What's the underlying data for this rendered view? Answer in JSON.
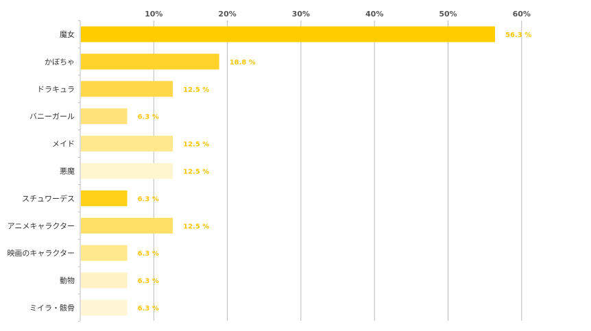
{
  "chart_data": {
    "type": "bar",
    "orientation": "horizontal",
    "title": "",
    "xlabel": "",
    "ylabel": "",
    "xlim": [
      0,
      60
    ],
    "x_ticks": [
      "10%",
      "20%",
      "30%",
      "40%",
      "50%",
      "60%"
    ],
    "x_tick_values": [
      10,
      20,
      30,
      40,
      50,
      60
    ],
    "grid": true,
    "legend": "none",
    "categories": [
      "魔女",
      "かぼちゃ",
      "ドラキュラ",
      "バニーガール",
      "メイド",
      "悪魔",
      "スチュワーデス",
      "アニメキャラクター",
      "映画のキャラクター",
      "動物",
      "ミイラ・骸骨"
    ],
    "values": [
      56.3,
      18.8,
      12.5,
      6.3,
      12.5,
      12.5,
      6.3,
      12.5,
      6.3,
      6.3,
      6.3
    ],
    "value_labels": [
      "56.3 %",
      "18.8 %",
      "12.5 %",
      "6.3 %",
      "12.5 %",
      "12.5 %",
      "6.3 %",
      "12.5 %",
      "6.3 %",
      "6.3 %",
      "6.3 %"
    ],
    "bar_colors": [
      "#FFCC00",
      "#FFD22A",
      "#FFD84A",
      "#FFE27A",
      "#FFE88E",
      "#FFF5CF",
      "#FFD21A",
      "#FFDF66",
      "#FFE78C",
      "#FFF3C6",
      "#FFF6D6"
    ],
    "value_label_color": "#F5C500",
    "grid_color": "#BBBBBB",
    "axis_color": "#BBBBBB"
  }
}
